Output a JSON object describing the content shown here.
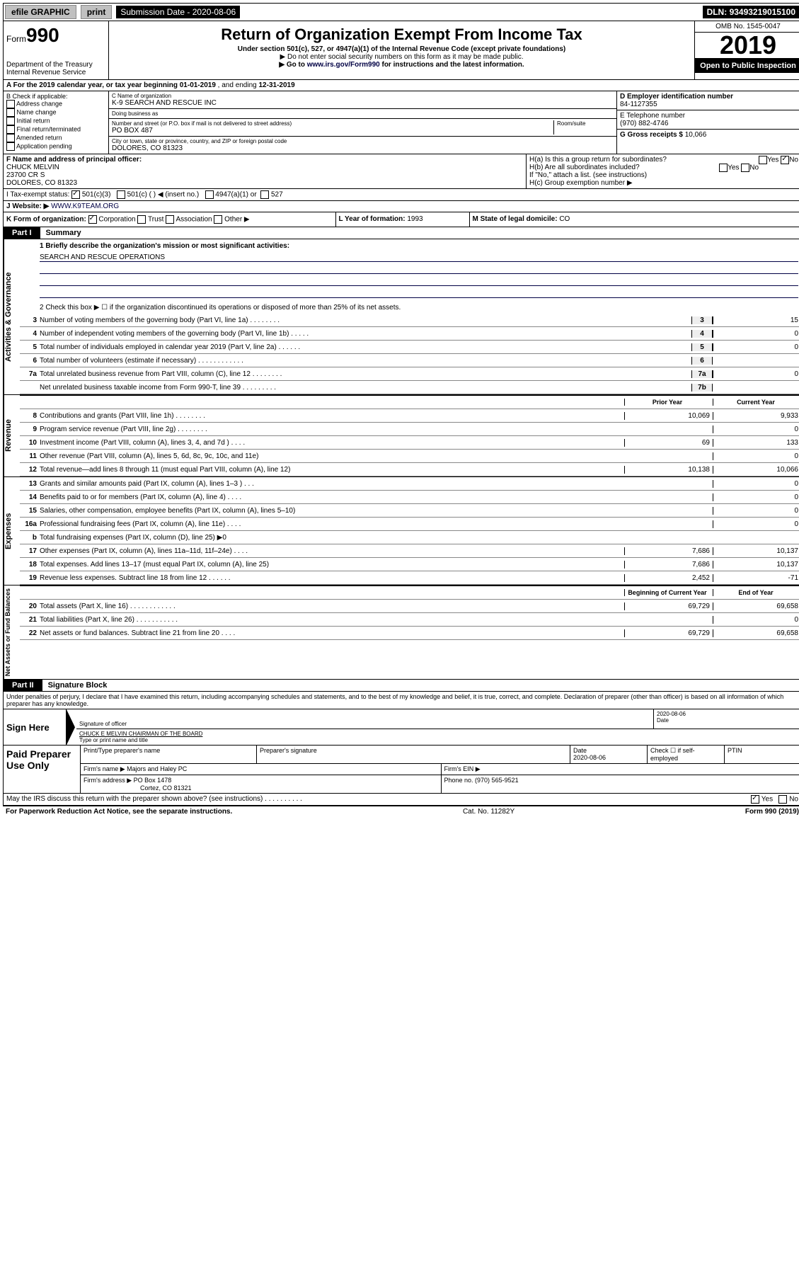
{
  "topbar": {
    "efile": "efile GRAPHIC",
    "print": "print",
    "subdate_label": "Submission Date - ",
    "subdate": "2020-08-06",
    "dln_label": "DLN: ",
    "dln": "93493219015100"
  },
  "header": {
    "form_label": "Form",
    "form_num": "990",
    "dept": "Department of the Treasury",
    "irs": "Internal Revenue Service",
    "title": "Return of Organization Exempt From Income Tax",
    "sub1": "Under section 501(c), 527, or 4947(a)(1) of the Internal Revenue Code (except private foundations)",
    "sub2": "▶ Do not enter social security numbers on this form as it may be made public.",
    "sub3_a": "▶ Go to ",
    "sub3_link": "www.irs.gov/Form990",
    "sub3_b": " for instructions and the latest information.",
    "omb": "OMB No. 1545-0047",
    "year": "2019",
    "open": "Open to Public Inspection"
  },
  "rowA": {
    "text_a": "A  For the 2019 calendar year, or tax year beginning ",
    "begin": "01-01-2019",
    "text_b": "  , and ending ",
    "end": "12-31-2019"
  },
  "colB": {
    "label": "B Check if applicable:",
    "opts": [
      "Address change",
      "Name change",
      "Initial return",
      "Final return/terminated",
      "Amended return",
      "Application pending"
    ]
  },
  "colC": {
    "name_lbl": "C Name of organization",
    "name": "K-9 SEARCH AND RESCUE INC",
    "dba_lbl": "Doing business as",
    "dba": "",
    "street_lbl": "Number and street (or P.O. box if mail is not delivered to street address)",
    "street": "PO BOX 487",
    "room_lbl": "Room/suite",
    "city_lbl": "City or town, state or province, country, and ZIP or foreign postal code",
    "city": "DOLORES, CO  81323"
  },
  "colD": {
    "ein_lbl": "D Employer identification number",
    "ein": "84-1127355",
    "phone_lbl": "E Telephone number",
    "phone": "(970) 882-4746",
    "gross_lbl": "G Gross receipts $ ",
    "gross": "10,066"
  },
  "rowF": {
    "lbl": "F  Name and address of principal officer:",
    "name": "CHUCK MELVIN",
    "addr1": "23700 CR S",
    "addr2": "DOLORES, CO  81323"
  },
  "rowH": {
    "ha": "H(a)  Is this a group return for subordinates?",
    "hb": "H(b)  Are all subordinates included?",
    "hb_note": "If \"No,\" attach a list. (see instructions)",
    "hc": "H(c)  Group exemption number ▶",
    "yes": "Yes",
    "no": "No"
  },
  "rowI": {
    "lbl": "I    Tax-exempt status:",
    "c3": "501(c)(3)",
    "c": "501(c) (  ) ◀ (insert no.)",
    "a1": "4947(a)(1) or",
    "s527": "527"
  },
  "rowJ": {
    "lbl": "J   Website: ▶  ",
    "site": "WWW.K9TEAM.ORG"
  },
  "rowK": {
    "lbl": "K Form of organization:",
    "corp": "Corporation",
    "trust": "Trust",
    "assoc": "Association",
    "other": "Other ▶"
  },
  "rowL": {
    "lbl": "L Year of formation: ",
    "val": "1993"
  },
  "rowM": {
    "lbl": "M State of legal domicile: ",
    "val": "CO"
  },
  "part1": {
    "tab": "Part I",
    "title": "Summary"
  },
  "summary": {
    "l1_lbl": "1  Briefly describe the organization's mission or most significant activities:",
    "l1_val": "SEARCH AND RESCUE OPERATIONS",
    "l2": "2   Check this box ▶ ☐  if the organization discontinued its operations or disposed of more than 25% of its net assets.",
    "rows_ag": [
      {
        "n": "3",
        "lbl": "Number of voting members of the governing body (Part VI, line 1a)   .    .    .    .    .    .    .    .",
        "sn": "3",
        "v": "15"
      },
      {
        "n": "4",
        "lbl": "Number of independent voting members of the governing body (Part VI, line 1b)   .    .    .    .    .",
        "sn": "4",
        "v": "0"
      },
      {
        "n": "5",
        "lbl": "Total number of individuals employed in calendar year 2019 (Part V, line 2a)   .    .    .    .    .    .",
        "sn": "5",
        "v": "0"
      },
      {
        "n": "6",
        "lbl": "Total number of volunteers (estimate if necessary)   .    .    .    .    .    .    .    .    .    .    .    .",
        "sn": "6",
        "v": ""
      },
      {
        "n": "7a",
        "lbl": "Total unrelated business revenue from Part VIII, column (C), line 12   .    .    .    .    .    .    .    .",
        "sn": "7a",
        "v": "0"
      },
      {
        "n": "",
        "lbl": "Net unrelated business taxable income from Form 990-T, line 39   .    .    .    .    .    .    .    .    .",
        "sn": "7b",
        "v": ""
      }
    ],
    "head_prior": "Prior Year",
    "head_curr": "Current Year",
    "rows_rev": [
      {
        "n": "8",
        "lbl": "Contributions and grants (Part VIII, line 1h)   .    .    .    .    .    .    .    .",
        "p": "10,069",
        "c": "9,933"
      },
      {
        "n": "9",
        "lbl": "Program service revenue (Part VIII, line 2g)   .    .    .    .    .    .    .    .",
        "p": "",
        "c": "0"
      },
      {
        "n": "10",
        "lbl": "Investment income (Part VIII, column (A), lines 3, 4, and 7d )   .    .    .    .",
        "p": "69",
        "c": "133"
      },
      {
        "n": "11",
        "lbl": "Other revenue (Part VIII, column (A), lines 5, 6d, 8c, 9c, 10c, and 11e)",
        "p": "",
        "c": "0"
      },
      {
        "n": "12",
        "lbl": "Total revenue—add lines 8 through 11 (must equal Part VIII, column (A), line 12)",
        "p": "10,138",
        "c": "10,066"
      }
    ],
    "rows_exp": [
      {
        "n": "13",
        "lbl": "Grants and similar amounts paid (Part IX, column (A), lines 1–3 )   .    .    .",
        "p": "",
        "c": "0"
      },
      {
        "n": "14",
        "lbl": "Benefits paid to or for members (Part IX, column (A), line 4)   .    .    .    .",
        "p": "",
        "c": "0"
      },
      {
        "n": "15",
        "lbl": "Salaries, other compensation, employee benefits (Part IX, column (A), lines 5–10)",
        "p": "",
        "c": "0"
      },
      {
        "n": "16a",
        "lbl": "Professional fundraising fees (Part IX, column (A), line 11e)   .    .    .    .",
        "p": "",
        "c": "0"
      },
      {
        "n": "b",
        "lbl": "Total fundraising expenses (Part IX, column (D), line 25) ▶0",
        "p": "—",
        "c": "—"
      },
      {
        "n": "17",
        "lbl": "Other expenses (Part IX, column (A), lines 11a–11d, 11f–24e)   .    .    .    .",
        "p": "7,686",
        "c": "10,137"
      },
      {
        "n": "18",
        "lbl": "Total expenses. Add lines 13–17 (must equal Part IX, column (A), line 25)",
        "p": "7,686",
        "c": "10,137"
      },
      {
        "n": "19",
        "lbl": "Revenue less expenses. Subtract line 18 from line 12   .    .    .    .    .    .",
        "p": "2,452",
        "c": "-71"
      }
    ],
    "head_beg": "Beginning of Current Year",
    "head_end": "End of Year",
    "rows_na": [
      {
        "n": "20",
        "lbl": "Total assets (Part X, line 16)   .    .    .    .    .    .    .    .    .    .    .    .",
        "p": "69,729",
        "c": "69,658"
      },
      {
        "n": "21",
        "lbl": "Total liabilities (Part X, line 26)   .    .    .    .    .    .    .    .    .    .    .",
        "p": "",
        "c": "0"
      },
      {
        "n": "22",
        "lbl": "Net assets or fund balances. Subtract line 21 from line 20   .    .    .    .",
        "p": "69,729",
        "c": "69,658"
      }
    ],
    "side_ag": "Activities & Governance",
    "side_rev": "Revenue",
    "side_exp": "Expenses",
    "side_na": "Net Assets or Fund Balances"
  },
  "part2": {
    "tab": "Part II",
    "title": "Signature Block"
  },
  "perjury": "Under penalties of perjury, I declare that I have examined this return, including accompanying schedules and statements, and to the best of my knowledge and belief, it is true, correct, and complete. Declaration of preparer (other than officer) is based on all information of which preparer has any knowledge.",
  "sign": {
    "here": "Sign Here",
    "sig_lbl": "Signature of officer",
    "date_lbl": "Date",
    "date": "2020-08-06",
    "name": "CHUCK E MELVIN  CHAIRMAN OF THE BOARD",
    "name_lbl": "Type or print name and title"
  },
  "paid": {
    "title": "Paid Preparer Use Only",
    "h1": "Print/Type preparer's name",
    "h2": "Preparer's signature",
    "h3": "Date",
    "h3v": "2020-08-06",
    "h4": "Check ☐ if self-employed",
    "h5": "PTIN",
    "firm_lbl": "Firm's name    ▶",
    "firm": "Majors and Haley PC",
    "ein_lbl": "Firm's EIN ▶",
    "addr_lbl": "Firm's address ▶",
    "addr1": "PO Box 1478",
    "addr2": "Cortez, CO  81321",
    "phone_lbl": "Phone no. ",
    "phone": "(970) 565-9521"
  },
  "discuss": {
    "q": "May the IRS discuss this return with the preparer shown above? (see instructions)    .    .    .    .    .    .    .    .    .    .",
    "yes": "Yes",
    "no": "No"
  },
  "footer": {
    "pra": "For Paperwork Reduction Act Notice, see the separate instructions.",
    "cat": "Cat. No. 11282Y",
    "form": "Form 990 (2019)"
  }
}
